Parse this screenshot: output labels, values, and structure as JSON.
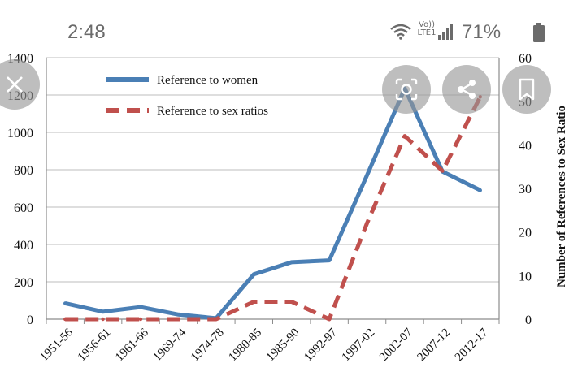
{
  "status_bar": {
    "time": "2:48",
    "volte_line1": "Vo))",
    "volte_line2": "LTE1",
    "battery": "71%"
  },
  "colors": {
    "women": "#4a7fb5",
    "sex_ratios": "#c0504d",
    "grid": "#bdbdbd",
    "axis": "#8c8c8c",
    "overlay": "rgba(150,150,150,0.62)"
  },
  "icons": [
    "close-icon",
    "lens-icon",
    "share-icon",
    "bookmark-icon",
    "wifi-icon",
    "signal-icon",
    "battery-icon"
  ],
  "chart_data": {
    "type": "line",
    "title": "",
    "xlabel": "",
    "ylabel_left": "",
    "ylabel_right": "Number of References to Sex Ratio",
    "categories": [
      "1951-56",
      "1956-61",
      "1961-66",
      "1969-74",
      "1974-78",
      "1980-85",
      "1985-90",
      "1992-97",
      "1997-02",
      "2002-07",
      "2007-12",
      "2012-17"
    ],
    "ylim_left": [
      0,
      1400
    ],
    "ylim_right": [
      0,
      60
    ],
    "yticks_left": [
      "0",
      "200",
      "400",
      "600",
      "800",
      "1000",
      "1200",
      "1400"
    ],
    "yticks_right": [
      "0",
      "10",
      "20",
      "30",
      "40",
      "50",
      "60"
    ],
    "grid": true,
    "legend_position": "top-left",
    "series": [
      {
        "name": "Reference to women",
        "axis": "left",
        "style": "solid",
        "values": [
          85,
          40,
          65,
          25,
          5,
          240,
          305,
          315,
          770,
          1235,
          790,
          690
        ]
      },
      {
        "name": "Reference to sex ratios",
        "axis": "right",
        "style": "dashed",
        "values": [
          0,
          0,
          0,
          0,
          0,
          4,
          4,
          0,
          22,
          42,
          34,
          51
        ]
      }
    ]
  }
}
